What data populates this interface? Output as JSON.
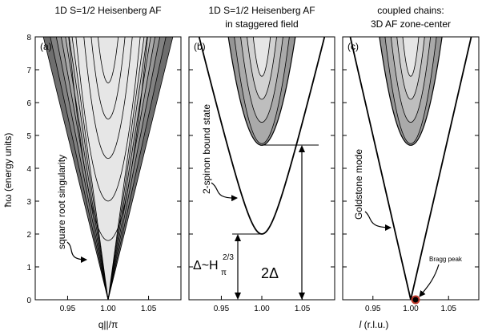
{
  "chart_data": [
    {
      "type": "contour",
      "panel_label": "(a)",
      "title": "1D S=1/2 Heisenberg AF",
      "xlabel": "q||/π",
      "ylabel": "ħω (energy units)",
      "xlim": [
        0.91,
        1.09
      ],
      "ylim": [
        0,
        8
      ],
      "xticks": [
        "0.95",
        "1.00",
        "1.05"
      ],
      "yticks": [
        "0",
        "1",
        "2",
        "3",
        "4",
        "5",
        "6",
        "7",
        "8"
      ],
      "lower_boundary": "ħω = k|q − 1|, k ≈ 100.0",
      "upper_boundary": "ħω = 2k|q − 1|",
      "annotations": [
        "square root singularity"
      ]
    },
    {
      "type": "contour",
      "panel_label": "(b)",
      "title": "1D S=1/2 Heisenberg AF",
      "subtitle": "in staggered field",
      "xlim": [
        0.91,
        1.09
      ],
      "ylim": [
        0,
        8
      ],
      "xticks": [
        "0.95",
        "1.00",
        "1.05"
      ],
      "gap": 2.0,
      "continuum_threshold": 4.7,
      "annotations": [
        "2-spinon bound state",
        "Δ~H",
        "π",
        "2/3",
        "2Δ"
      ]
    },
    {
      "type": "contour",
      "panel_label": "(c)",
      "title": "coupled chains:",
      "subtitle": "3D AF zone-center",
      "xlim": [
        0.91,
        1.09
      ],
      "ylim": [
        0,
        8
      ],
      "xticks": [
        "0.95",
        "1.00",
        "1.05"
      ],
      "continuum_threshold": 4.7,
      "annotations": [
        "Goldstone mode",
        "Bragg peak"
      ]
    }
  ],
  "shared_xlabel_italic": "l",
  "shared_xlabel": " (r.l.u.)",
  "colors": {
    "shades": [
      "#6e6e6e",
      "#828282",
      "#969696",
      "#aaaaaa",
      "#bebebe",
      "#d2d2d2",
      "#e6e6e6"
    ],
    "bragg_peak": "#c0392b"
  }
}
